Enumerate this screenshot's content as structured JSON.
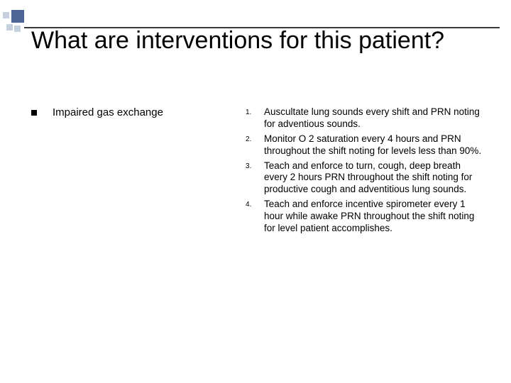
{
  "decor": {
    "accent_color": "#4f6796",
    "light_color": "#c6d1e0",
    "bar_color": "#3b3b3b"
  },
  "title": {
    "text": "What are interventions for this patient?",
    "fontsize": 34,
    "color": "#000000"
  },
  "left": {
    "diagnosis": "Impaired gas exchange",
    "fontsize": 15
  },
  "interventions": {
    "fontsize": 13.5,
    "num_fontsize": 10,
    "items": [
      {
        "n": "1.",
        "text": "Auscultate lung sounds every shift and PRN noting for adventious sounds."
      },
      {
        "n": "2.",
        "text": "Monitor O 2 saturation every 4 hours and PRN throughout the shift noting for levels less than 90%."
      },
      {
        "n": "3.",
        "text": "Teach and enforce to turn, cough, deep breath every 2 hours PRN throughout the shift noting for productive cough and adventitious lung sounds."
      },
      {
        "n": "4.",
        "text": "Teach and enforce incentive spirometer every 1 hour while awake PRN throughout the shift noting for level patient accomplishes."
      }
    ]
  },
  "background_color": "#ffffff"
}
